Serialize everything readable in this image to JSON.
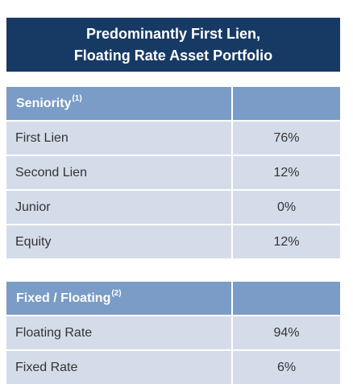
{
  "title": {
    "line1": "Predominantly First Lien,",
    "line2": "Floating Rate Asset Portfolio"
  },
  "seniority": {
    "header": "Seniority",
    "footnote": "(1)",
    "rows": [
      {
        "label": "First Lien",
        "value": "76%"
      },
      {
        "label": "Second Lien",
        "value": "12%"
      },
      {
        "label": "Junior",
        "value": "0%"
      },
      {
        "label": "Equity",
        "value": "12%"
      }
    ]
  },
  "fixed_floating": {
    "header": "Fixed / Floating",
    "footnote": "(2)",
    "rows": [
      {
        "label": "Floating Rate",
        "value": "94%"
      },
      {
        "label": "Fixed Rate",
        "value": "6%"
      }
    ]
  },
  "colors": {
    "banner": "#173a65",
    "header": "#7a9cc6",
    "row": "#d5dce9"
  }
}
